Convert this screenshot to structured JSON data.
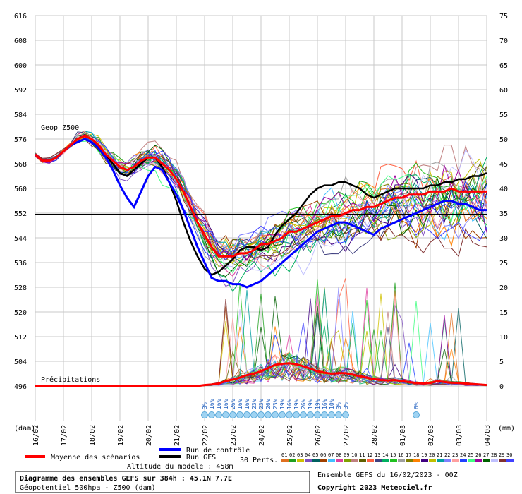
{
  "chart_data": {
    "type": "line",
    "title": "Diagramme des ensembles GEFS sur 384h : 45.1N 7.7E",
    "subtitle": "Géopotentiel 500hpa - Z500 (dam)",
    "model_info": "Ensemble GEFS du 16/02/2023 - 00Z",
    "copyright": "Copyright 2023 Meteociel.fr",
    "altitude_label": "Altitude du modele : 458m",
    "left_axis": {
      "unit": "(dam)",
      "min": 496,
      "max": 616,
      "ticks": [
        616,
        608,
        600,
        592,
        584,
        576,
        568,
        560,
        552,
        544,
        536,
        528,
        520,
        512,
        504,
        496
      ]
    },
    "right_axis": {
      "unit": "(mm)",
      "min": 0,
      "max": 75,
      "ticks": [
        75,
        70,
        65,
        60,
        55,
        50,
        45,
        40,
        35,
        30,
        25,
        20,
        15,
        10,
        5,
        0
      ]
    },
    "x_dates": [
      "16/02",
      "17/02",
      "18/02",
      "19/02",
      "20/02",
      "21/02",
      "22/02",
      "23/02",
      "24/02",
      "25/02",
      "26/02",
      "27/02",
      "28/02",
      "01/03",
      "02/03",
      "03/03",
      "04/03"
    ],
    "hours_step": 6,
    "total_steps": 64,
    "grid": true,
    "legend": {
      "mean": "Moyenne des scénarios",
      "control": "Run de contrôle",
      "gfs": "Run GFS",
      "perts": "30 Perts."
    },
    "labels": {
      "geop": "Geop Z500",
      "precip": "Précipitations"
    },
    "reference_line_dam": 552,
    "colors": {
      "mean": "#ff0000",
      "control": "#0000ff",
      "gfs": "#000000",
      "members": [
        "#e07020",
        "#20a020",
        "#d0c000",
        "#8050c0",
        "#006060",
        "#a04000",
        "#40c0ff",
        "#e040a0",
        "#80a000",
        "#c08080",
        "#606000",
        "#ff6040",
        "#404080",
        "#00b060",
        "#20c020",
        "#a0a0a0",
        "#808000",
        "#ff8000",
        "#400080",
        "#c0c000",
        "#00a0a0",
        "#8080ff",
        "#ffa0a0",
        "#2040ff",
        "#40ff80",
        "#a000a0",
        "#006000",
        "#c0c0ff",
        "#803030",
        "#4040ff"
      ]
    },
    "series": [
      {
        "name": "Moyenne des scénarios",
        "z500": [
          571,
          569,
          569,
          570,
          572,
          574,
          576,
          577,
          576,
          574,
          571,
          569,
          567,
          566,
          567,
          569,
          570,
          570,
          568,
          566,
          563,
          559,
          554,
          549,
          545,
          541,
          538,
          538,
          538,
          539,
          539,
          540,
          542,
          542,
          543,
          544,
          546,
          546,
          547,
          548,
          549,
          550,
          551,
          551,
          552,
          553,
          553,
          554,
          554,
          555,
          556,
          557,
          557,
          558,
          558,
          558,
          559,
          559,
          559,
          560,
          559,
          559,
          559,
          559,
          559
        ]
      },
      {
        "name": "Run de contrôle",
        "z500": [
          571,
          569,
          569,
          570,
          572,
          574,
          575,
          576,
          575,
          573,
          570,
          566,
          561,
          557,
          554,
          559,
          564,
          567,
          566,
          562,
          558,
          553,
          547,
          541,
          536,
          531,
          530,
          530,
          529,
          529,
          528,
          529,
          530,
          532,
          534,
          536,
          538,
          540,
          542,
          544,
          546,
          547,
          548,
          549,
          549,
          548,
          547,
          546,
          545,
          547,
          548,
          549,
          550,
          551,
          552,
          553,
          554,
          555,
          556,
          556,
          555,
          555,
          554,
          553,
          553
        ]
      },
      {
        "name": "Run GFS",
        "z500": [
          571,
          569,
          569,
          570,
          572,
          574,
          576,
          577,
          576,
          574,
          571,
          568,
          565,
          564,
          566,
          568,
          570,
          570,
          567,
          562,
          556,
          549,
          543,
          538,
          534,
          532,
          533,
          535,
          537,
          540,
          541,
          541,
          540,
          541,
          545,
          548,
          550,
          552,
          555,
          558,
          560,
          561,
          561,
          562,
          562,
          561,
          560,
          558,
          557,
          558,
          559,
          560,
          560,
          560,
          560,
          560,
          561,
          561,
          562,
          562,
          563,
          563,
          564,
          564,
          565
        ]
      }
    ],
    "mean_precip_mm": [
      0,
      0,
      0,
      0,
      0,
      0,
      0,
      0,
      0,
      0,
      0,
      0,
      0,
      0,
      0,
      0,
      0,
      0,
      0,
      0,
      0,
      0,
      0,
      0,
      0.2,
      0.3,
      0.5,
      1.0,
      1.3,
      1.7,
      2.2,
      2.5,
      3,
      3.6,
      4.3,
      4.5,
      4.6,
      4.4,
      4.0,
      3.5,
      3.0,
      2.7,
      2.5,
      2.6,
      2.6,
      2.3,
      2.0,
      1.7,
      1.4,
      1.2,
      1.1,
      1.2,
      1.0,
      0.8,
      0.6,
      0.5,
      0.6,
      1.0,
      0.8,
      0.7,
      0.6,
      0.5,
      0.4,
      0.3,
      0.2
    ],
    "snow_markers": {
      "range1": {
        "from_step": 24,
        "to_step": 44,
        "labels": [
          "3%",
          "16%",
          "16%",
          "16%",
          "26%",
          "16%",
          "16%",
          "23%",
          "23%",
          "26%",
          "23%",
          "19%",
          "16%",
          "19%",
          "26%",
          "19%",
          "19%",
          "16%",
          "10%",
          "3%",
          "3%"
        ]
      },
      "range2": {
        "from_step": 54,
        "to_step": 54,
        "labels": [
          "6%"
        ]
      }
    },
    "pert_ids": [
      "01",
      "02",
      "03",
      "04",
      "05",
      "06",
      "07",
      "08",
      "09",
      "10",
      "11",
      "12",
      "13",
      "14",
      "15",
      "16",
      "17",
      "18",
      "19",
      "20",
      "21",
      "22",
      "23",
      "24",
      "25",
      "26",
      "27",
      "28",
      "29",
      "30"
    ]
  }
}
